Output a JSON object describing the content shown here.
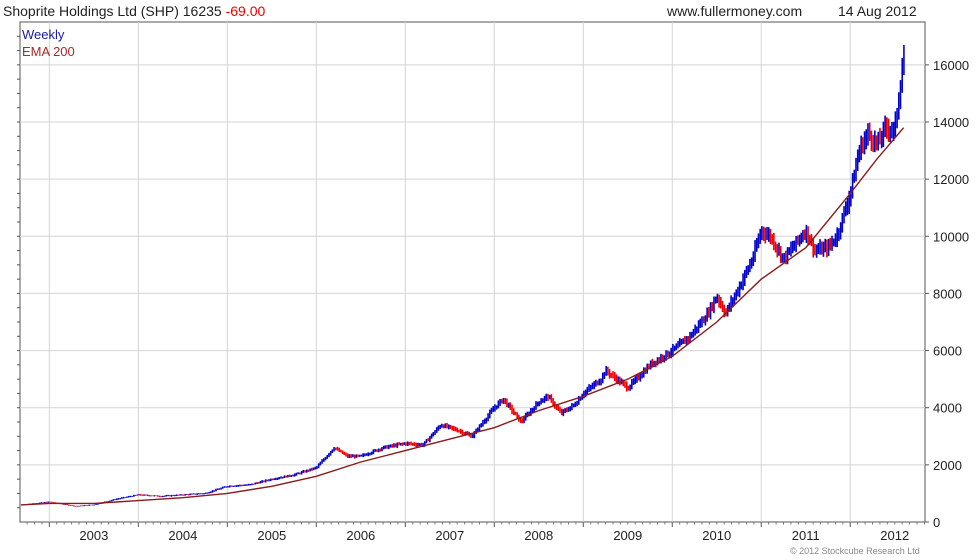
{
  "header": {
    "title": "Shoprite Holdings Ltd (SHP) 16235",
    "change": "-69.00",
    "site": "www.fullermoney.com",
    "date": "14 Aug 2012"
  },
  "legend": {
    "series1": "Weekly",
    "series2": "EMA 200"
  },
  "copyright": "© 2012 Stockcube Research Ltd",
  "colors": {
    "up": "#0000cc",
    "down": "#ee0000",
    "ema": "#8b1a1a",
    "grid": "#d4d4d4",
    "legend1": "#1a1aaa",
    "legend2": "#a52a2a"
  },
  "chart_data": {
    "type": "line",
    "y_ticks": [
      0,
      2000,
      4000,
      6000,
      8000,
      10000,
      12000,
      14000,
      16000
    ],
    "x_ticks": [
      "2003",
      "2004",
      "2005",
      "2006",
      "2007",
      "2008",
      "2009",
      "2010",
      "2011",
      "2012"
    ],
    "ylim": [
      0,
      17500
    ],
    "xlim": [
      2002.67,
      2012.84
    ],
    "grid": true,
    "series": [
      {
        "name": "Weekly",
        "x": [
          2002.68,
          2003.0,
          2003.3,
          2003.5,
          2003.75,
          2004.0,
          2004.25,
          2004.5,
          2004.75,
          2005.0,
          2005.25,
          2005.5,
          2005.75,
          2006.0,
          2006.2,
          2006.35,
          2006.5,
          2006.75,
          2007.0,
          2007.2,
          2007.4,
          2007.6,
          2007.75,
          2008.0,
          2008.1,
          2008.3,
          2008.5,
          2008.6,
          2008.75,
          2008.9,
          2009.0,
          2009.2,
          2009.25,
          2009.5,
          2009.6,
          2009.75,
          2010.0,
          2010.2,
          2010.4,
          2010.5,
          2010.6,
          2010.75,
          2010.9,
          2011.0,
          2011.1,
          2011.25,
          2011.4,
          2011.5,
          2011.6,
          2011.75,
          2011.85,
          2012.0,
          2012.1,
          2012.2,
          2012.3,
          2012.4,
          2012.5,
          2012.58,
          2012.62
        ],
        "y": [
          600,
          700,
          550,
          600,
          800,
          950,
          900,
          950,
          1000,
          1250,
          1300,
          1500,
          1650,
          1900,
          2600,
          2300,
          2300,
          2600,
          2750,
          2700,
          3400,
          3200,
          3000,
          4000,
          4300,
          3500,
          4200,
          4400,
          3800,
          4100,
          4500,
          5000,
          5300,
          4700,
          5000,
          5500,
          6000,
          6500,
          7300,
          7900,
          7300,
          8200,
          9200,
          10200,
          10000,
          9200,
          9800,
          10200,
          9500,
          9600,
          10000,
          11500,
          13000,
          13600,
          13200,
          13800,
          13700,
          15800,
          16600
        ]
      },
      {
        "name": "EMA 200",
        "x": [
          2002.68,
          2003.0,
          2003.5,
          2004.0,
          2004.5,
          2005.0,
          2005.5,
          2006.0,
          2006.5,
          2007.0,
          2007.5,
          2008.0,
          2008.5,
          2009.0,
          2009.5,
          2010.0,
          2010.5,
          2011.0,
          2011.5,
          2012.0,
          2012.3,
          2012.6
        ],
        "y": [
          600,
          650,
          650,
          750,
          850,
          1000,
          1250,
          1600,
          2100,
          2500,
          2900,
          3300,
          3900,
          4400,
          5000,
          5800,
          7000,
          8500,
          9600,
          11500,
          12700,
          13800
        ]
      }
    ]
  }
}
